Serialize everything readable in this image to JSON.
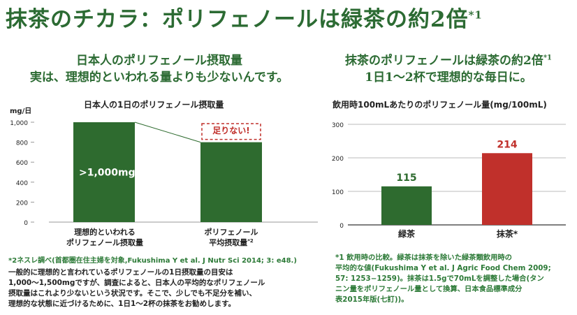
{
  "title": {
    "text": "抹茶のチカラ：ポリフェノールは緑茶の約2倍",
    "sup": "*1"
  },
  "left": {
    "heading_line1": "日本人のポリフェノール摂取量",
    "heading_line2": "実は、理想的といわれる量よりも少ないんです。",
    "chart_title": "日本人の1日のポリフェノール摂取量",
    "bar_label": ">1,000mg",
    "warning_label": "足りない!",
    "cat1_line1": "理想的といわれる",
    "cat1_line2": "ポリフェノール摂取量",
    "cat2_line1": "ポリフェノール",
    "cat2_line2": "平均摂取量",
    "cat2_sup": "*2",
    "footnote": "*2ネスレ調べ(首都圏在住主婦を対象,Fukushima Y et al. J Nutr Sci 2014; 3: e48.)",
    "body_line1": "一般的に理想的と言われているポリフェノールの1日摂取量の目安は",
    "body_line2": "1,000〜1,500mgですが、調査によると、日本人の平均的なポリフェノール",
    "body_line3": "摂取量はこれより少ないという状況です。そこで、少しでも不足分を補い、",
    "body_line4": "理想的な状態に近づけるために、1日1〜2杯の抹茶をお勧めします。"
  },
  "right": {
    "heading_line1": "抹茶のポリフェノールは緑茶の約2倍",
    "heading_sup": "*1",
    "heading_line2": "1日1～2杯で理想的な毎日に。",
    "chart_title": "飲用時100mLあたりのポリフェノール量(mg/100mL)",
    "footnote_line1": "*1 飲用時の比較。緑茶は抹茶を除いた緑茶類飲用時の",
    "footnote_line2": "平均的な値(Fukushima Y et al. J Agric Food Chem 2009;",
    "footnote_line3": "57:  1253−1259)。抹茶は1.5gで70mLを調整した場合(タン",
    "footnote_line4": "ニン量をポリフェノール量として換算、日本食品標準成分",
    "footnote_line5": "表2015年版(七訂))。"
  },
  "colors": {
    "green": "#2e6b2f",
    "red": "#c0302b",
    "text_green": "#2c6b33"
  },
  "chart_data": [
    {
      "type": "bar",
      "title": "日本人の1日のポリフェノール摂取量",
      "ylabel": "mg/日",
      "categories": [
        "理想的といわれるポリフェノール摂取量",
        "ポリフェノール平均摂取量*2"
      ],
      "values": [
        1000,
        800
      ],
      "yticks": [
        "0",
        "200",
        "400",
        "600",
        "800",
        "1,000"
      ],
      "ylim": [
        0,
        1000
      ]
    },
    {
      "type": "bar",
      "title": "飲用時100mLあたりのポリフェノール量(mg/100mL)",
      "categories": [
        "緑茶",
        "抹茶*"
      ],
      "values": [
        115,
        214
      ],
      "value_labels": [
        "115",
        "214"
      ],
      "yticks": [
        "0",
        "100",
        "200",
        "300"
      ],
      "ylim": [
        0,
        300
      ],
      "grid": true
    }
  ]
}
